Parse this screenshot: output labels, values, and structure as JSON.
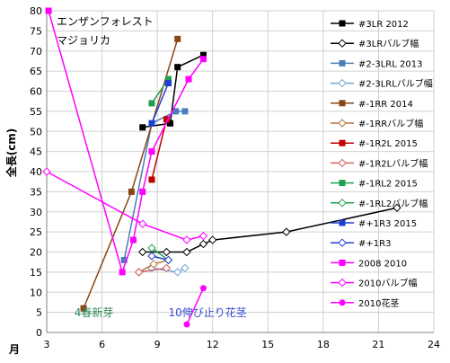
{
  "chart_data": {
    "type": "line",
    "title": "エンザンフォレスト",
    "subtitle": "マジョリカ",
    "ylabel": "全長(cm)",
    "xlabel": "月",
    "xlim": [
      3,
      24
    ],
    "ylim": [
      0,
      80
    ],
    "xticks": [
      3,
      6,
      9,
      12,
      15,
      18,
      21,
      24
    ],
    "yticks": [
      0,
      5,
      10,
      15,
      20,
      25,
      30,
      35,
      40,
      45,
      50,
      55,
      60,
      65,
      70,
      75,
      80
    ],
    "grid": true,
    "legend": "right",
    "annotations": [
      {
        "text": "4春新芽",
        "x": 4.5,
        "y": 4,
        "color": "#2e8b57"
      },
      {
        "text": "10伸び止り花茎",
        "x": 9.6,
        "y": 4,
        "color": "#3a4bd0"
      }
    ],
    "series": [
      {
        "name": "#3LR 2012",
        "color": "#000000",
        "marker": "square-filled",
        "points": [
          [
            8.2,
            51
          ],
          [
            9.7,
            52
          ],
          [
            10.1,
            66
          ],
          [
            11.5,
            69
          ]
        ]
      },
      {
        "name": "#3LRバルブ幅",
        "color": "#000000",
        "marker": "diamond-open",
        "points": [
          [
            8.2,
            20
          ],
          [
            9.5,
            20
          ],
          [
            10.6,
            20
          ],
          [
            11.5,
            22
          ],
          [
            12.0,
            23
          ],
          [
            16.0,
            25
          ],
          [
            22.0,
            31
          ]
        ]
      },
      {
        "name": "#2-3LRL 2013",
        "color": "#4a7ebb",
        "marker": "square-filled",
        "points": [
          [
            7.2,
            18
          ],
          [
            8.7,
            52
          ],
          [
            10.0,
            55
          ],
          [
            10.5,
            55
          ]
        ]
      },
      {
        "name": "#2-3LRLバルブ幅",
        "color": "#7aa5d8",
        "marker": "diamond-open",
        "points": [
          [
            8.7,
            16
          ],
          [
            10.1,
            15
          ],
          [
            10.5,
            16
          ]
        ]
      },
      {
        "name": "#-1RR 2014",
        "color": "#8b4513",
        "marker": "square-filled",
        "points": [
          [
            5.0,
            6
          ],
          [
            7.6,
            35
          ],
          [
            10.1,
            73
          ]
        ]
      },
      {
        "name": "#-1RRバルブ幅",
        "color": "#b8733a",
        "marker": "diamond-open",
        "points": [
          [
            8.0,
            15
          ],
          [
            8.8,
            17
          ],
          [
            9.6,
            18
          ]
        ]
      },
      {
        "name": "#-1R2L 2015",
        "color": "#c00000",
        "marker": "square-filled",
        "points": [
          [
            8.7,
            38
          ],
          [
            9.5,
            53
          ]
        ]
      },
      {
        "name": "#-1R2Lバルブ幅",
        "color": "#d46060",
        "marker": "diamond-open",
        "points": [
          [
            8.0,
            15
          ],
          [
            9.5,
            16
          ]
        ]
      },
      {
        "name": "#-1RL2 2015",
        "color": "#1fa050",
        "marker": "square-filled",
        "points": [
          [
            8.7,
            57
          ],
          [
            9.6,
            63
          ]
        ]
      },
      {
        "name": "#-1RL2バルブ幅",
        "color": "#1fa050",
        "marker": "diamond-open",
        "points": [
          [
            8.7,
            21
          ],
          [
            9.6,
            18
          ]
        ]
      },
      {
        "name": "#+1R3 2015",
        "color": "#1f3fd0",
        "marker": "square-filled",
        "points": [
          [
            8.7,
            52
          ],
          [
            9.6,
            62
          ]
        ]
      },
      {
        "name": "#+1R3",
        "color": "#1f3fd0",
        "marker": "diamond-open",
        "points": [
          [
            8.7,
            19
          ],
          [
            9.6,
            18
          ]
        ]
      },
      {
        "name": "2008 2010",
        "color": "#ff00ff",
        "marker": "square-filled",
        "points": [
          [
            3.1,
            80
          ],
          [
            7.1,
            15
          ],
          [
            7.7,
            23
          ],
          [
            8.2,
            35
          ],
          [
            8.7,
            45
          ],
          [
            10.7,
            63
          ],
          [
            11.5,
            68
          ]
        ]
      },
      {
        "name": "2010バルブ幅",
        "color": "#ff00ff",
        "marker": "diamond-open",
        "points": [
          [
            3.0,
            40
          ],
          [
            8.2,
            27
          ],
          [
            10.6,
            23
          ],
          [
            11.5,
            24
          ]
        ]
      },
      {
        "name": "2010花茎",
        "color": "#ff00ff",
        "marker": "circle-filled",
        "points": [
          [
            10.6,
            2
          ],
          [
            11.5,
            11
          ]
        ]
      }
    ]
  }
}
